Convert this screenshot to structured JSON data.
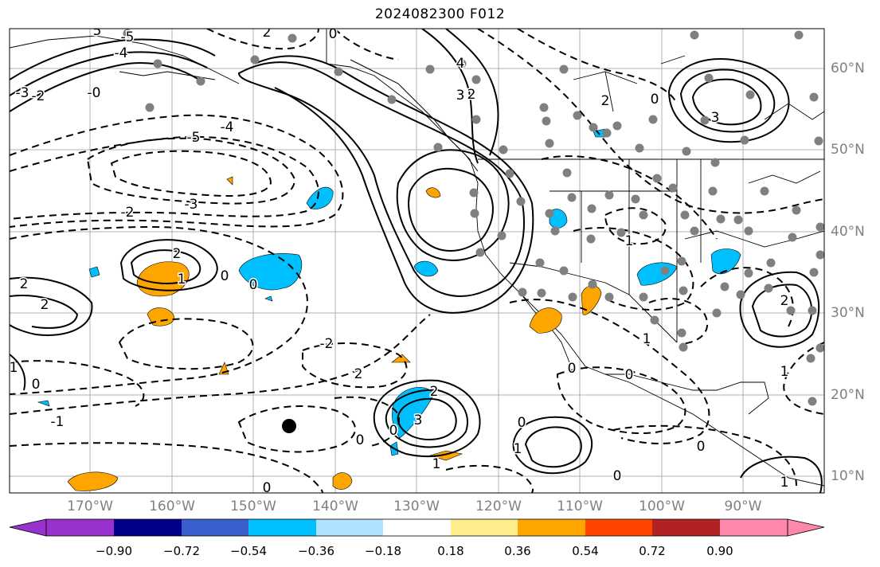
{
  "title": "2024082300 F012",
  "lon_labels": [
    "170°W",
    "160°W",
    "150°W",
    "140°W",
    "130°W",
    "120°W",
    "110°W",
    "100°W",
    "90°W"
  ],
  "lat_labels": [
    "60°N",
    "50°N",
    "40°N",
    "30°N",
    "20°N",
    "10°N"
  ],
  "contour_labels": [
    "-5",
    "-4",
    "-3",
    "-2",
    "-1",
    "0",
    "1",
    "2",
    "3",
    "4",
    "5",
    "-0"
  ],
  "colorbar": {
    "ticks": [
      "−0.90",
      "−0.72",
      "−0.54",
      "−0.36",
      "−0.18",
      "0.18",
      "0.36",
      "0.54",
      "0.72",
      "0.90"
    ],
    "colors": [
      "#9932cc",
      "#00008b",
      "#3a5fcd",
      "#00bfff",
      "#b0e2ff",
      "#ffffff",
      "#ffec8b",
      "#ffa500",
      "#ff4500",
      "#b22222",
      "#ff88aa"
    ]
  },
  "colors": {
    "positive_fill": "#ffa500",
    "negative_fill": "#00bfff",
    "station": "#808080",
    "grid": "#b0b0b0"
  }
}
